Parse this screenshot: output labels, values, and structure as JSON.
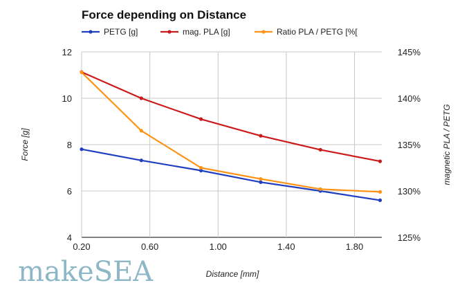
{
  "chart_data": {
    "type": "line",
    "title": "Force depending on Distance",
    "xlabel": "Distance [mm]",
    "ylabel": "Force [g]",
    "y2label": "magnetic PLA / PETG",
    "xlim": [
      0.2,
      1.96
    ],
    "ylim": [
      4,
      12
    ],
    "y2lim": [
      125,
      145
    ],
    "xticks": [
      "0.20",
      "0.60",
      "1.00",
      "1.40",
      "1.80"
    ],
    "xtick_values": [
      0.2,
      0.6,
      1.0,
      1.4,
      1.8
    ],
    "yticks": [
      "4",
      "6",
      "8",
      "10",
      "12"
    ],
    "y2ticks": [
      "125%",
      "130%",
      "135%",
      "140%",
      "145%"
    ],
    "grid": true,
    "legend_position": "top",
    "series": [
      {
        "name": "PETG [g]",
        "axis": "left",
        "color": "#1f3fbf",
        "x": [
          0.2,
          0.55,
          0.9,
          1.25,
          1.6,
          1.95
        ],
        "y": [
          7.8,
          7.32,
          6.88,
          6.38,
          6.0,
          5.6
        ]
      },
      {
        "name": "mag. PLA [g]",
        "axis": "left",
        "color": "#cc1a1a",
        "x": [
          0.2,
          0.55,
          0.9,
          1.25,
          1.6,
          1.95
        ],
        "y": [
          11.13,
          10.0,
          9.1,
          8.38,
          7.78,
          7.28
        ]
      },
      {
        "name": "Ratio PLA / PETG [%[",
        "axis": "right",
        "color": "#ff9214",
        "x": [
          0.2,
          0.55,
          0.9,
          1.25,
          1.6,
          1.95
        ],
        "y": [
          142.8,
          136.5,
          132.5,
          131.3,
          130.2,
          129.9
        ]
      }
    ]
  },
  "watermark": "makeSEA"
}
